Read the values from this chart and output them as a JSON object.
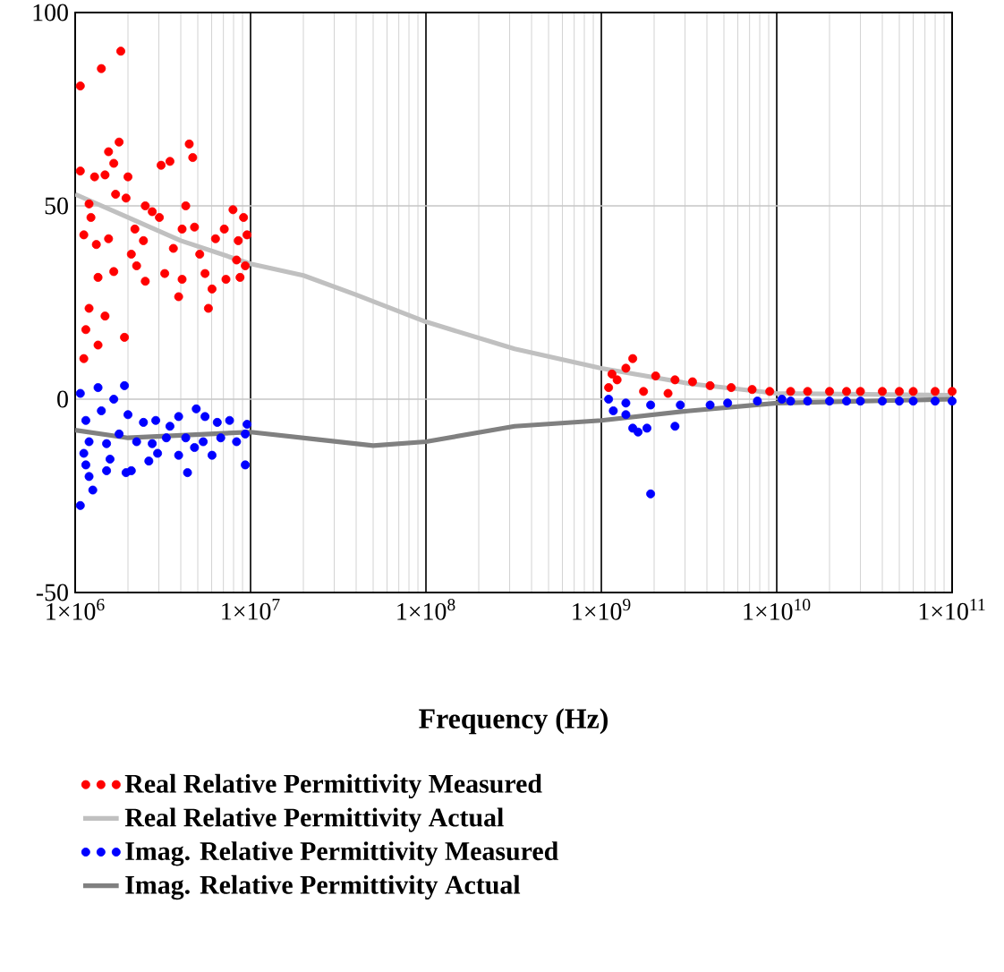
{
  "chart_data": {
    "type": "scatter",
    "xlabel": "Frequency (Hz)",
    "log": "x",
    "grid": true,
    "legend": "bottom",
    "xlim": [
      1000000.0,
      100000000000.0
    ],
    "ylim": [
      -50,
      100
    ],
    "yticks": [
      -50,
      0,
      50,
      100
    ],
    "xticks": [
      {
        "value": 1000000.0,
        "label": "1×10$^{6}$"
      },
      {
        "value": 10000000.0,
        "label": "1×10$^{7}$"
      },
      {
        "value": 100000000.0,
        "label": "1×10$^{8}$"
      },
      {
        "value": 1000000000.0,
        "label": "1×10$^{9}$"
      },
      {
        "value": 10000000000.0,
        "label": "1×10$^{10}$"
      },
      {
        "value": 100000000000.0,
        "label": "1×10$^{11}$"
      }
    ],
    "series": [
      {
        "name": "Real Relative Permittivity Measured",
        "marker": "circle",
        "color": "#ff0000",
        "x": [
          1070000.0,
          1410000.0,
          1820000.0,
          1070000.0,
          1780000.0,
          1550000.0,
          1660000.0,
          1290000.0,
          1480000.0,
          2000000.0,
          3090000.0,
          3470000.0,
          4470000.0,
          4680000.0,
          1700000.0,
          1950000.0,
          1200000.0,
          1120000.0,
          1320000.0,
          1550000.0,
          1230000.0,
          2190000.0,
          2510000.0,
          2750000.0,
          3020000.0,
          2450000.0,
          2090000.0,
          1660000.0,
          1350000.0,
          2240000.0,
          2510000.0,
          3240000.0,
          3890000.0,
          4070000.0,
          3630000.0,
          4070000.0,
          4790000.0,
          4270000.0,
          5130000.0,
          5500000.0,
          5750000.0,
          6030000.0,
          6310000.0,
          7080000.0,
          7240000.0,
          7940000.0,
          8320000.0,
          8510000.0,
          9120000.0,
          9550000.0,
          9330000.0,
          8710000.0,
          1200000.0,
          1480000.0,
          1150000.0,
          1350000.0,
          1910000.0,
          1120000.0,
          1510000000.0,
          1380000000.0,
          1150000000.0,
          1230000000.0,
          2040000000.0,
          2630000000.0,
          3310000000.0,
          4170000000.0,
          5500000000.0,
          7240000000.0,
          9120000000.0,
          1100000000.0,
          1740000000.0,
          2400000000.0,
          12000000000.0,
          15000000000.0,
          20000000000.0,
          25000000000.0,
          30000000000.0,
          40000000000.0,
          50000000000.0,
          60000000000.0,
          80000000000.0,
          100000000000.0
        ],
        "values": [
          81,
          85.5,
          90,
          59,
          66.5,
          64,
          61,
          57.5,
          58,
          57.5,
          60.5,
          61.5,
          66,
          62.5,
          53,
          52,
          50.5,
          42.5,
          40,
          41.5,
          47,
          44,
          50,
          48.5,
          47,
          41,
          37.5,
          33,
          31.5,
          34.5,
          30.5,
          32.5,
          26.5,
          31,
          39,
          44,
          44.5,
          50,
          37.5,
          32.5,
          23.5,
          28.5,
          41.5,
          44,
          31,
          49,
          36,
          41,
          47,
          42.5,
          34.5,
          31.5,
          23.5,
          21.5,
          18,
          14,
          16,
          10.5,
          10.5,
          8,
          6.5,
          5,
          6,
          5,
          4.5,
          3.5,
          3,
          2.5,
          2,
          3,
          2,
          1.5,
          2,
          2,
          2,
          2,
          2,
          2,
          2,
          2,
          2,
          2
        ]
      },
      {
        "name": "Real Relative Permittivity Actual",
        "type": "line",
        "marker": "none",
        "color": "#c0c0c0",
        "x": [
          1000000.0,
          2000000.0,
          4000000.0,
          10000000.0,
          20000000.0,
          40000000.0,
          100000000.0,
          320000000.0,
          1000000000.0,
          3200000000.0,
          10000000000.0,
          100000000000.0
        ],
        "values": [
          53,
          47,
          41,
          35,
          32,
          27,
          20,
          13,
          8,
          4,
          1.5,
          1
        ]
      },
      {
        "name": "Imag. Relative Permittivity Measured",
        "marker": "circle",
        "color": "#0000ff",
        "x": [
          1070000.0,
          1350000.0,
          1910000.0,
          1660000.0,
          1410000.0,
          1150000.0,
          2000000.0,
          2450000.0,
          2880000.0,
          3470000.0,
          3890000.0,
          4900000.0,
          5500000.0,
          6460000.0,
          7590000.0,
          9550000.0,
          1200000.0,
          1510000.0,
          1780000.0,
          2240000.0,
          2750000.0,
          3310000.0,
          4270000.0,
          5370000.0,
          6760000.0,
          8320000.0,
          9330000.0,
          1120000.0,
          1580000.0,
          2090000.0,
          2630000.0,
          2950000.0,
          3890000.0,
          4790000.0,
          6030000.0,
          9330000.0,
          4370000.0,
          1950000.0,
          1510000.0,
          1150000.0,
          1200000.0,
          1260000.0,
          1070000.0,
          1100000000.0,
          1170000000.0,
          1380000000.0,
          1620000000.0,
          1820000000.0,
          1510000000.0,
          2630000000.0,
          1910000000.0,
          1380000000.0,
          1910000000.0,
          2820000000.0,
          4170000000.0,
          5250000000.0,
          7760000000.0,
          10700000000.0,
          12000000000.0,
          15000000000.0,
          20000000000.0,
          25000000000.0,
          30000000000.0,
          40000000000.0,
          50000000000.0,
          60000000000.0,
          80000000000.0,
          100000000000.0
        ],
        "values": [
          1.5,
          3,
          3.5,
          0,
          -3,
          -5.5,
          -4,
          -6,
          -5.5,
          -7,
          -4.5,
          -2.5,
          -4.5,
          -6,
          -5.5,
          -6.5,
          -11,
          -11.5,
          -9,
          -11,
          -11.5,
          -10,
          -10,
          -11,
          -10,
          -11,
          -9,
          -14,
          -15.5,
          -18.5,
          -16,
          -14,
          -14.5,
          -12.5,
          -14.5,
          -17,
          -19,
          -19,
          -18.5,
          -17,
          -20,
          -23.5,
          -27.5,
          0,
          -3,
          -4,
          -8.5,
          -7.5,
          -7.5,
          -7,
          -24.5,
          -1,
          -1.5,
          -1.5,
          -1.5,
          -1,
          -0.5,
          0,
          -0.5,
          -0.5,
          -0.5,
          -0.5,
          -0.5,
          -0.5,
          -0.5,
          -0.5,
          -0.5,
          -0.5
        ]
      },
      {
        "name": "Imag. Relative Permittivity Actual",
        "type": "line",
        "marker": "none",
        "color": "#808080",
        "x": [
          1000000.0,
          2000000.0,
          10000000.0,
          25000000.0,
          50000000.0,
          100000000.0,
          320000000.0,
          1000000000.0,
          3200000000.0,
          10000000000.0,
          100000000000.0
        ],
        "values": [
          -8,
          -10,
          -8.5,
          -10.5,
          -12,
          -11,
          -7,
          -5.5,
          -3,
          -1,
          0
        ]
      }
    ]
  }
}
